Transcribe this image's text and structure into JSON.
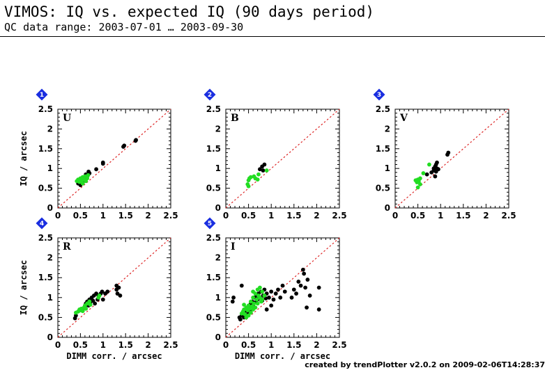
{
  "header": {
    "title": "VIMOS: IQ vs. expected IQ (90 days period)",
    "subtitle": "QC data range: 2003-07-01 … 2003-09-30"
  },
  "footer": "created by trendPlotter v2.0.2 on 2009-02-06T14:28:37",
  "colors": {
    "series_black": "#000000",
    "series_green": "#22dd22",
    "diagonal": "#dd2222",
    "badge": "#1a2ee0"
  },
  "chart_data": [
    {
      "badge": "1",
      "band": "U",
      "type": "scatter",
      "xlim": [
        0,
        2.5
      ],
      "ylim": [
        0,
        2.5
      ],
      "xticks": [
        "0",
        "0.5",
        "1",
        "1.5",
        "2",
        "2.5"
      ],
      "yticks": [
        "0",
        "0.5",
        "1",
        "1.5",
        "2",
        "2.5"
      ],
      "xlabel": "",
      "ylabel": "IQ / arcsec",
      "reference_line": "y = x",
      "series": [
        {
          "color": "black",
          "points": [
            [
              0.45,
              0.62
            ],
            [
              0.5,
              0.58
            ],
            [
              0.52,
              0.7
            ],
            [
              0.55,
              0.65
            ],
            [
              0.6,
              0.72
            ],
            [
              0.62,
              0.85
            ],
            [
              0.65,
              0.8
            ],
            [
              0.68,
              0.92
            ],
            [
              0.7,
              0.88
            ],
            [
              0.85,
              0.98
            ],
            [
              1.0,
              1.15
            ],
            [
              1.0,
              1.12
            ],
            [
              1.45,
              1.55
            ],
            [
              1.47,
              1.58
            ],
            [
              1.72,
              1.7
            ],
            [
              1.73,
              1.72
            ]
          ]
        },
        {
          "color": "green",
          "points": [
            [
              0.42,
              0.68
            ],
            [
              0.45,
              0.72
            ],
            [
              0.48,
              0.66
            ],
            [
              0.5,
              0.75
            ],
            [
              0.52,
              0.7
            ],
            [
              0.55,
              0.78
            ],
            [
              0.57,
              0.72
            ],
            [
              0.6,
              0.8
            ],
            [
              0.62,
              0.68
            ],
            [
              0.65,
              0.75
            ],
            [
              0.67,
              0.83
            ],
            [
              0.55,
              0.62
            ]
          ]
        }
      ]
    },
    {
      "badge": "2",
      "band": "B",
      "type": "scatter",
      "xlim": [
        0,
        2.5
      ],
      "ylim": [
        0,
        2.5
      ],
      "xticks": [
        "0",
        "0.5",
        "1",
        "1.5",
        "2",
        "2.5"
      ],
      "yticks": [
        "0",
        "0.5",
        "1",
        "1.5",
        "2",
        "2.5"
      ],
      "xlabel": "",
      "ylabel": "",
      "reference_line": "y = x",
      "series": [
        {
          "color": "black",
          "points": [
            [
              0.75,
              0.98
            ],
            [
              0.8,
              1.05
            ],
            [
              0.82,
              0.95
            ],
            [
              0.85,
              1.1
            ]
          ]
        },
        {
          "color": "green",
          "points": [
            [
              0.48,
              0.6
            ],
            [
              0.5,
              0.7
            ],
            [
              0.52,
              0.75
            ],
            [
              0.55,
              0.78
            ],
            [
              0.5,
              0.55
            ],
            [
              0.62,
              0.8
            ],
            [
              0.65,
              0.75
            ],
            [
              0.7,
              0.72
            ],
            [
              0.72,
              0.85
            ],
            [
              0.9,
              0.95
            ]
          ]
        }
      ]
    },
    {
      "badge": "3",
      "band": "V",
      "type": "scatter",
      "xlim": [
        0,
        2.5
      ],
      "ylim": [
        0,
        2.5
      ],
      "xticks": [
        "0",
        "0.5",
        "1",
        "1.5",
        "2",
        "2.5"
      ],
      "yticks": [
        "0",
        "0.5",
        "1",
        "1.5",
        "2",
        "2.5"
      ],
      "xlabel": "",
      "ylabel": "",
      "reference_line": "y = x",
      "series": [
        {
          "color": "black",
          "points": [
            [
              0.7,
              0.85
            ],
            [
              0.8,
              0.9
            ],
            [
              0.85,
              0.95
            ],
            [
              0.85,
              1.0
            ],
            [
              0.88,
              1.05
            ],
            [
              0.9,
              0.92
            ],
            [
              0.9,
              1.1
            ],
            [
              0.92,
              1.0
            ],
            [
              0.88,
              0.8
            ],
            [
              0.92,
              1.15
            ],
            [
              0.95,
              0.98
            ],
            [
              1.15,
              1.35
            ],
            [
              1.17,
              1.4
            ]
          ]
        },
        {
          "color": "green",
          "points": [
            [
              0.45,
              0.7
            ],
            [
              0.48,
              0.65
            ],
            [
              0.5,
              0.72
            ],
            [
              0.52,
              0.68
            ],
            [
              0.55,
              0.75
            ],
            [
              0.5,
              0.52
            ],
            [
              0.55,
              0.6
            ],
            [
              0.62,
              0.88
            ],
            [
              0.75,
              1.1
            ]
          ]
        }
      ]
    },
    {
      "badge": "4",
      "band": "R",
      "type": "scatter",
      "xlim": [
        0,
        2.5
      ],
      "ylim": [
        0,
        2.5
      ],
      "xticks": [
        "0",
        "0.5",
        "1",
        "1.5",
        "2",
        "2.5"
      ],
      "yticks": [
        "0",
        "0.5",
        "1",
        "1.5",
        "2",
        "2.5"
      ],
      "xlabel": "DIMM corr. / arcsec",
      "ylabel": "IQ / arcsec",
      "reference_line": "y = x",
      "series": [
        {
          "color": "black",
          "points": [
            [
              0.38,
              0.48
            ],
            [
              0.4,
              0.55
            ],
            [
              0.55,
              0.7
            ],
            [
              0.6,
              0.78
            ],
            [
              0.62,
              0.85
            ],
            [
              0.65,
              0.9
            ],
            [
              0.68,
              0.8
            ],
            [
              0.7,
              0.95
            ],
            [
              0.72,
              0.88
            ],
            [
              0.75,
              1.0
            ],
            [
              0.78,
              0.92
            ],
            [
              0.8,
              1.05
            ],
            [
              0.82,
              0.85
            ],
            [
              0.85,
              1.1
            ],
            [
              0.88,
              0.95
            ],
            [
              0.9,
              1.05
            ],
            [
              0.95,
              1.1
            ],
            [
              0.98,
              1.15
            ],
            [
              1.0,
              0.95
            ],
            [
              1.05,
              1.1
            ],
            [
              1.1,
              1.15
            ],
            [
              1.3,
              1.2
            ],
            [
              1.3,
              1.3
            ],
            [
              1.32,
              1.1
            ],
            [
              1.35,
              1.25
            ],
            [
              1.38,
              1.05
            ]
          ]
        },
        {
          "color": "green",
          "points": [
            [
              0.4,
              0.62
            ],
            [
              0.45,
              0.65
            ],
            [
              0.48,
              0.7
            ],
            [
              0.5,
              0.68
            ],
            [
              0.52,
              0.72
            ],
            [
              0.55,
              0.66
            ],
            [
              0.58,
              0.75
            ],
            [
              0.6,
              0.8
            ],
            [
              0.62,
              0.72
            ],
            [
              0.65,
              0.85
            ],
            [
              0.7,
              0.9
            ],
            [
              0.72,
              0.82
            ],
            [
              0.9,
              1.0
            ],
            [
              0.92,
              1.05
            ]
          ]
        }
      ]
    },
    {
      "badge": "5",
      "band": "I",
      "type": "scatter",
      "xlim": [
        0,
        2.5
      ],
      "ylim": [
        0,
        2.5
      ],
      "xticks": [
        "0",
        "0.5",
        "1",
        "1.5",
        "2",
        "2.5"
      ],
      "yticks": [
        "0",
        "0.5",
        "1",
        "1.5",
        "2",
        "2.5"
      ],
      "xlabel": "DIMM corr. / arcsec",
      "ylabel": "",
      "reference_line": "y = x",
      "series": [
        {
          "color": "black",
          "points": [
            [
              0.15,
              0.9
            ],
            [
              0.17,
              1.0
            ],
            [
              0.3,
              0.5
            ],
            [
              0.32,
              0.45
            ],
            [
              0.35,
              0.55
            ],
            [
              0.35,
              1.3
            ],
            [
              0.38,
              0.6
            ],
            [
              0.4,
              0.5
            ],
            [
              0.42,
              0.65
            ],
            [
              0.45,
              0.55
            ],
            [
              0.48,
              0.7
            ],
            [
              0.5,
              0.6
            ],
            [
              0.52,
              0.75
            ],
            [
              0.55,
              0.68
            ],
            [
              0.55,
              0.85
            ],
            [
              0.58,
              0.9
            ],
            [
              0.6,
              0.78
            ],
            [
              0.62,
              1.0
            ],
            [
              0.65,
              0.88
            ],
            [
              0.68,
              1.05
            ],
            [
              0.7,
              0.95
            ],
            [
              0.72,
              1.1
            ],
            [
              0.75,
              1.0
            ],
            [
              0.78,
              1.15
            ],
            [
              0.8,
              0.92
            ],
            [
              0.82,
              1.05
            ],
            [
              0.85,
              1.2
            ],
            [
              0.88,
              0.98
            ],
            [
              0.9,
              1.1
            ],
            [
              0.95,
              1.0
            ],
            [
              1.0,
              1.15
            ],
            [
              1.05,
              0.95
            ],
            [
              1.1,
              1.1
            ],
            [
              1.15,
              1.2
            ],
            [
              1.2,
              1.0
            ],
            [
              1.25,
              1.3
            ],
            [
              1.3,
              1.15
            ],
            [
              0.9,
              0.7
            ],
            [
              1.0,
              0.8
            ],
            [
              1.45,
              1.0
            ],
            [
              1.5,
              1.2
            ],
            [
              1.55,
              1.1
            ],
            [
              1.6,
              1.4
            ],
            [
              1.65,
              1.3
            ],
            [
              1.7,
              1.7
            ],
            [
              1.72,
              1.6
            ],
            [
              1.75,
              1.25
            ],
            [
              1.78,
              0.75
            ],
            [
              1.8,
              1.45
            ],
            [
              1.85,
              1.05
            ],
            [
              2.05,
              0.7
            ],
            [
              2.05,
              1.25
            ]
          ]
        },
        {
          "color": "green",
          "points": [
            [
              0.35,
              0.6
            ],
            [
              0.38,
              0.65
            ],
            [
              0.4,
              0.7
            ],
            [
              0.42,
              0.58
            ],
            [
              0.45,
              0.75
            ],
            [
              0.48,
              0.68
            ],
            [
              0.5,
              0.8
            ],
            [
              0.52,
              0.72
            ],
            [
              0.55,
              0.9
            ],
            [
              0.58,
              0.78
            ],
            [
              0.6,
              1.0
            ],
            [
              0.62,
              0.85
            ],
            [
              0.65,
              1.1
            ],
            [
              0.68,
              0.95
            ],
            [
              0.7,
              1.2
            ],
            [
              0.72,
              1.05
            ],
            [
              0.75,
              1.25
            ],
            [
              0.78,
              0.9
            ],
            [
              0.8,
              1.15
            ],
            [
              0.45,
              0.5
            ],
            [
              0.5,
              0.55
            ],
            [
              0.55,
              0.62
            ],
            [
              0.6,
              0.7
            ],
            [
              0.4,
              0.82
            ],
            [
              0.65,
              0.75
            ],
            [
              0.7,
              0.85
            ],
            [
              0.75,
              1.0
            ],
            [
              0.8,
              0.95
            ],
            [
              0.85,
              1.05
            ],
            [
              0.6,
              1.15
            ]
          ]
        }
      ]
    }
  ]
}
